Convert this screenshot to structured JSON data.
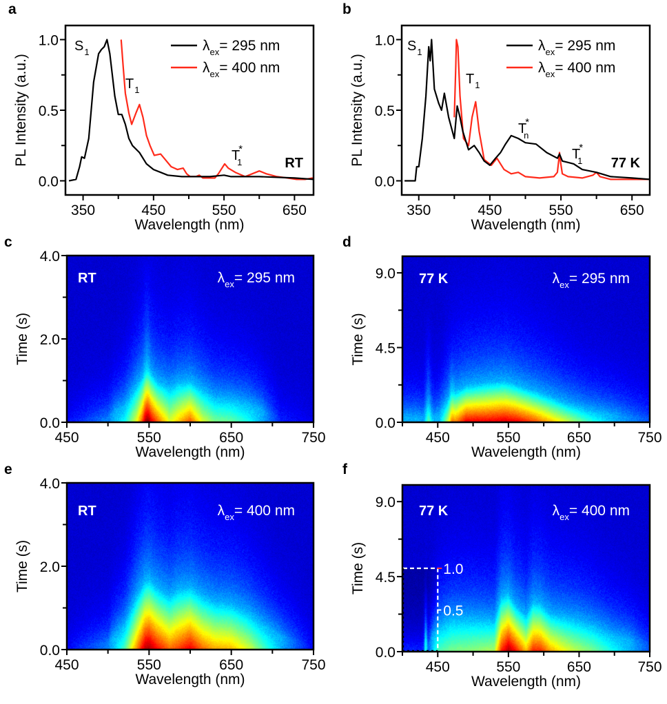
{
  "chart_data": [
    {
      "panel_label": "a",
      "type": "line",
      "xlabel": "Wavelength (nm)",
      "ylabel": "PL Intensity (a.u.)",
      "xlim": [
        325,
        677
      ],
      "ylim": [
        -0.1,
        1.1
      ],
      "xticks": [
        350,
        450,
        550,
        650
      ],
      "xtick_labels": [
        "350",
        "450",
        "550",
        "650"
      ],
      "minor_xticks": [
        400,
        500,
        600
      ],
      "yticks": [
        0,
        0.5,
        1.0
      ],
      "ytick_labels": [
        "0.0",
        "0.5",
        "1.0"
      ],
      "minor_yticks": [
        0.25,
        0.75
      ],
      "grid": false,
      "legend_location": "top-right",
      "condition_label": "RT",
      "series": [
        {
          "name_symbol": "λ",
          "name_sub": "ex",
          "name_rest": "= 295 nm",
          "color": "#000000",
          "x": [
            330,
            340,
            345,
            348,
            352,
            358,
            365,
            372,
            376,
            380,
            384,
            388,
            395,
            400,
            405,
            410,
            415,
            420,
            430,
            440,
            450,
            460,
            470,
            490,
            530,
            550,
            560,
            600,
            650,
            677
          ],
          "y": [
            0,
            0.01,
            0.1,
            0.17,
            0.16,
            0.3,
            0.7,
            0.9,
            0.93,
            0.95,
            1.0,
            0.9,
            0.6,
            0.47,
            0.47,
            0.4,
            0.3,
            0.25,
            0.2,
            0.12,
            0.08,
            0.06,
            0.04,
            0.03,
            0.03,
            0.04,
            0.03,
            0.03,
            0.02,
            0.01
          ]
        },
        {
          "name_symbol": "λ",
          "name_sub": "ex",
          "name_rest": "= 400 nm",
          "color": "#ff2a1a",
          "x": [
            404,
            407,
            410,
            415,
            419,
            425,
            430,
            435,
            440,
            445,
            451,
            460,
            465,
            475,
            484,
            492,
            497,
            502,
            510,
            515,
            520,
            527,
            537,
            542,
            551,
            556,
            566,
            580,
            590,
            600,
            610,
            625,
            640,
            653,
            665,
            675,
            677
          ],
          "y": [
            1.0,
            0.8,
            0.62,
            0.48,
            0.4,
            0.48,
            0.54,
            0.45,
            0.32,
            0.25,
            0.18,
            0.19,
            0.16,
            0.1,
            0.08,
            0.09,
            0.05,
            0.03,
            0.03,
            0.04,
            0.02,
            0.02,
            0.02,
            0.05,
            0.12,
            0.09,
            0.06,
            0.03,
            0.05,
            0.07,
            0.05,
            0.03,
            0.02,
            0.01,
            0.01,
            0.02,
            0.01
          ]
        }
      ],
      "annotations": [
        {
          "base": "S",
          "sub": "1",
          "sup": ""
        },
        {
          "base": "T",
          "sub": "1",
          "sup": ""
        },
        {
          "base": "T",
          "sub": "1",
          "sup": "*"
        }
      ]
    },
    {
      "panel_label": "b",
      "type": "line",
      "xlabel": "Wavelength (nm)",
      "ylabel": "PL Intensity (a.u.)",
      "xlim": [
        326,
        675
      ],
      "ylim": [
        -0.1,
        1.1
      ],
      "xticks": [
        350,
        450,
        550,
        650
      ],
      "xtick_labels": [
        "350",
        "450",
        "550",
        "650"
      ],
      "minor_xticks": [
        400,
        500,
        600
      ],
      "yticks": [
        0,
        0.5,
        1.0
      ],
      "ytick_labels": [
        "0.0",
        "0.5",
        "1.0"
      ],
      "minor_yticks": [
        0.25,
        0.75
      ],
      "grid": false,
      "legend_location": "top-right",
      "condition_label": "77 K",
      "series": [
        {
          "name_symbol": "λ",
          "name_sub": "ex",
          "name_rest": "= 295 nm",
          "color": "#000000",
          "x": [
            330,
            345,
            347,
            350,
            355,
            360,
            364,
            366,
            368,
            372,
            378,
            382,
            386,
            392,
            400,
            404,
            408,
            412,
            420,
            428,
            435,
            442,
            450,
            458,
            465,
            472,
            480,
            490,
            500,
            515,
            530,
            545,
            548,
            552,
            560,
            568,
            580,
            600,
            620,
            650,
            675
          ],
          "y": [
            0,
            0,
            0.1,
            0.1,
            0.3,
            0.6,
            0.95,
            0.85,
            1.0,
            0.65,
            0.55,
            0.5,
            0.62,
            0.45,
            0.3,
            0.53,
            0.45,
            0.35,
            0.22,
            0.25,
            0.2,
            0.14,
            0.11,
            0.16,
            0.2,
            0.26,
            0.32,
            0.3,
            0.27,
            0.26,
            0.2,
            0.16,
            0.19,
            0.14,
            0.13,
            0.12,
            0.08,
            0.06,
            0.03,
            0.02,
            0.01
          ]
        },
        {
          "name_symbol": "λ",
          "name_sub": "ex",
          "name_rest": "= 400 nm",
          "color": "#ff2a1a",
          "x": [
            400,
            402,
            403,
            405,
            408,
            413,
            420,
            425,
            430,
            435,
            442,
            452,
            460,
            470,
            480,
            490,
            500,
            520,
            540,
            545,
            547,
            548,
            549,
            552,
            560,
            580,
            595,
            600,
            605,
            620,
            650,
            675
          ],
          "y": [
            0.45,
            0.8,
            1.0,
            0.95,
            0.6,
            0.3,
            0.25,
            0.45,
            0.56,
            0.35,
            0.15,
            0.11,
            0.16,
            0.08,
            0.05,
            0.06,
            0.03,
            0.02,
            0.03,
            0.06,
            0.15,
            0.2,
            0.15,
            0.05,
            0.03,
            0.02,
            0.04,
            0.06,
            0.03,
            0.01,
            0.01,
            0.01
          ]
        }
      ],
      "annotations": [
        {
          "base": "S",
          "sub": "1",
          "sup": ""
        },
        {
          "base": "T",
          "sub": "1",
          "sup": ""
        },
        {
          "base": "T",
          "sub": "n",
          "sup": "*"
        },
        {
          "base": "T",
          "sub": "1",
          "sup": "*"
        }
      ]
    },
    {
      "panel_label": "c",
      "type": "heatmap",
      "xlabel": "Wavelength (nm)",
      "ylabel": "Time (s)",
      "xlim": [
        450,
        750
      ],
      "ylim": [
        0,
        4.0
      ],
      "xticks": [
        450,
        550,
        650,
        750
      ],
      "xtick_labels": [
        "450",
        "550",
        "650",
        "750"
      ],
      "minor_xticks": [
        500,
        600,
        700
      ],
      "yticks": [
        0,
        2.0,
        4.0
      ],
      "ytick_labels": [
        "0.0",
        "2.0",
        "4.0"
      ],
      "minor_yticks": [
        1.0,
        3.0
      ],
      "colormap": "jet",
      "condition_label": "RT",
      "excitation": {
        "symbol": "λ",
        "sub": "ex",
        "rest": "= 295 nm"
      },
      "intensity_profile": {
        "wavelength": [
          450,
          500,
          520,
          535,
          545,
          550,
          560,
          575,
          585,
          600,
          615,
          630,
          650,
          670,
          690,
          710,
          750
        ],
        "relative_intensity": [
          0.12,
          0.25,
          0.38,
          0.62,
          0.9,
          0.95,
          0.8,
          0.6,
          0.68,
          0.8,
          0.6,
          0.5,
          0.48,
          0.4,
          0.28,
          0.15,
          0.1
        ],
        "visible_decay_s": [
          0.05,
          0.1,
          0.4,
          0.9,
          1.2,
          1.25,
          1.0,
          0.85,
          0.95,
          1.0,
          0.8,
          0.6,
          0.55,
          0.45,
          0.25,
          0.1,
          0.05
        ]
      },
      "streaks": [
        {
          "wavelength": 547,
          "visible_decay_s": 4.0
        }
      ]
    },
    {
      "panel_label": "d",
      "type": "heatmap",
      "xlabel": "Wavelength (nm)",
      "ylabel": "Time (s)",
      "xlim": [
        400,
        750
      ],
      "ylim": [
        0,
        10
      ],
      "xticks": [
        450,
        550,
        650,
        750
      ],
      "xtick_labels": [
        "450",
        "550",
        "650",
        "750"
      ],
      "minor_xticks": [
        400,
        500,
        600,
        700
      ],
      "yticks": [
        0,
        4.5,
        9.0
      ],
      "ytick_labels": [
        "0.0",
        "4.5",
        "9.0"
      ],
      "minor_yticks": [
        2.25,
        6.75
      ],
      "colormap": "jet",
      "condition_label": "77 K",
      "excitation": {
        "symbol": "λ",
        "sub": "ex",
        "rest": "= 295 nm"
      },
      "intensity_profile": {
        "wavelength": [
          400,
          420,
          430,
          438,
          445,
          452,
          470,
          490,
          520,
          545,
          560,
          580,
          600,
          630,
          660,
          700,
          750
        ],
        "relative_intensity": [
          0.3,
          0.3,
          0.28,
          0.42,
          0.3,
          0.3,
          0.7,
          0.9,
          0.9,
          0.92,
          0.9,
          0.84,
          0.75,
          0.6,
          0.45,
          0.3,
          0.2
        ],
        "visible_decay_s": [
          0.3,
          0.3,
          0.3,
          0.8,
          0.3,
          0.5,
          1.8,
          2.2,
          2.4,
          2.5,
          2.3,
          2.0,
          1.7,
          1.2,
          0.8,
          0.4,
          0.2
        ]
      },
      "streaks": [
        {
          "wavelength": 436,
          "visible_decay_s": 7.0
        },
        {
          "wavelength": 470,
          "visible_decay_s": 5.0
        }
      ]
    },
    {
      "panel_label": "e",
      "type": "heatmap",
      "xlabel": "Wavelength (nm)",
      "ylabel": "Time (s)",
      "xlim": [
        450,
        750
      ],
      "ylim": [
        0,
        4.0
      ],
      "xticks": [
        450,
        550,
        650,
        750
      ],
      "xtick_labels": [
        "450",
        "550",
        "650",
        "750"
      ],
      "minor_xticks": [
        500,
        600,
        700
      ],
      "yticks": [
        0,
        2.0,
        4.0
      ],
      "ytick_labels": [
        "0.0",
        "2.0",
        "4.0"
      ],
      "minor_yticks": [
        1.0,
        3.0
      ],
      "colormap": "jet",
      "condition_label": "RT",
      "excitation": {
        "symbol": "λ",
        "sub": "ex",
        "rest": "= 400 nm"
      },
      "intensity_profile": {
        "wavelength": [
          450,
          500,
          520,
          535,
          545,
          550,
          560,
          575,
          585,
          600,
          615,
          630,
          650,
          670,
          690,
          710,
          750
        ],
        "relative_intensity": [
          0.12,
          0.25,
          0.45,
          0.75,
          0.95,
          0.97,
          0.88,
          0.78,
          0.82,
          0.9,
          0.78,
          0.72,
          0.7,
          0.6,
          0.45,
          0.3,
          0.12
        ],
        "visible_decay_s": [
          0.05,
          0.15,
          0.6,
          1.3,
          1.65,
          1.7,
          1.5,
          1.3,
          1.45,
          1.5,
          1.3,
          1.15,
          1.1,
          0.9,
          0.6,
          0.3,
          0.08
        ]
      },
      "streaks": []
    },
    {
      "panel_label": "f",
      "type": "heatmap",
      "xlabel": "Wavelength (nm)",
      "ylabel": "Time (s)",
      "xlim": [
        400,
        750
      ],
      "ylim": [
        0,
        10
      ],
      "xticks": [
        450,
        550,
        650,
        750
      ],
      "xtick_labels": [
        "450",
        "550",
        "650",
        "750"
      ],
      "minor_xticks": [
        400,
        500,
        600,
        700
      ],
      "yticks": [
        0,
        4.5,
        9.0
      ],
      "ytick_labels": [
        "0.0",
        "4.5",
        "9.0"
      ],
      "minor_yticks": [
        2.25,
        6.75
      ],
      "colormap": "jet",
      "condition_label": "77 K",
      "excitation": {
        "symbol": "λ",
        "sub": "ex",
        "rest": "= 400 nm"
      },
      "intensity_profile": {
        "wavelength": [
          400,
          430,
          433,
          436,
          450,
          470,
          500,
          530,
          540,
          550,
          560,
          575,
          585,
          595,
          610,
          630,
          650,
          670,
          700,
          750
        ],
        "relative_intensity": [
          0.15,
          0.15,
          0.35,
          0.2,
          0.45,
          0.5,
          0.52,
          0.55,
          0.85,
          0.97,
          0.88,
          0.7,
          0.85,
          0.85,
          0.72,
          0.62,
          0.55,
          0.5,
          0.38,
          0.2
        ],
        "visible_decay_s": [
          0.2,
          0.2,
          0.8,
          0.3,
          1.5,
          2.0,
          2.0,
          1.9,
          3.3,
          3.5,
          2.8,
          2.2,
          3.0,
          2.9,
          2.3,
          2.1,
          1.9,
          1.6,
          1.0,
          0.3
        ]
      },
      "streaks": [
        {
          "wavelength": 433,
          "visible_decay_s": 4.5
        }
      ],
      "inset": {
        "xlim": [
          400,
          450
        ],
        "ylim": [
          0,
          5
        ],
        "tick_labels": [
          "1.0",
          "0.5"
        ]
      }
    }
  ]
}
